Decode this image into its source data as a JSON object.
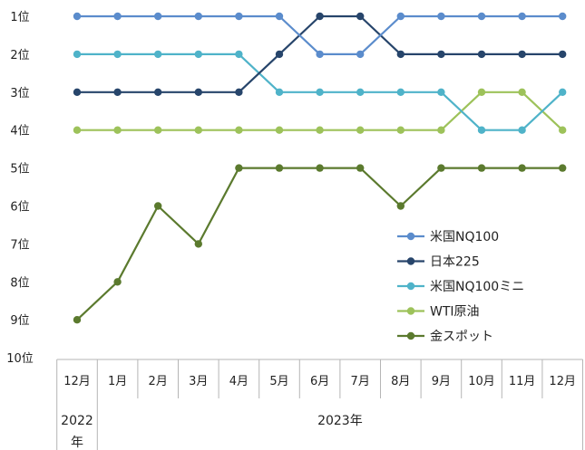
{
  "chart_data": {
    "type": "line",
    "y_tick_labels": [
      "1位",
      "2位",
      "3位",
      "4位",
      "5位",
      "6位",
      "7位",
      "8位",
      "9位",
      "10位"
    ],
    "ylim": [
      1,
      10
    ],
    "y_inverted": true,
    "categories": [
      "12月",
      "1月",
      "2月",
      "3月",
      "4月",
      "5月",
      "6月",
      "7月",
      "8月",
      "9月",
      "10月",
      "11月",
      "12月"
    ],
    "year_groups": [
      {
        "label": "2022年",
        "span": [
          0,
          0
        ]
      },
      {
        "label": "2023年",
        "span": [
          1,
          12
        ]
      }
    ],
    "grid": false,
    "legend_position": "right, lower middle",
    "series": [
      {
        "name": "米国NQ100",
        "color": "#5b8ccc",
        "values": [
          1,
          1,
          1,
          1,
          1,
          1,
          2,
          2,
          1,
          1,
          1,
          1,
          1
        ]
      },
      {
        "name": "日本225",
        "color": "#27456b",
        "values": [
          3,
          3,
          3,
          3,
          3,
          2,
          1,
          1,
          2,
          2,
          2,
          2,
          2
        ]
      },
      {
        "name": "米国NQ100ミニ",
        "color": "#4fb3c9",
        "values": [
          2,
          2,
          2,
          2,
          2,
          3,
          3,
          3,
          3,
          3,
          4,
          4,
          3
        ]
      },
      {
        "name": "WTI原油",
        "color": "#9dc25a",
        "values": [
          4,
          4,
          4,
          4,
          4,
          4,
          4,
          4,
          4,
          4,
          3,
          3,
          4
        ]
      },
      {
        "name": "金スポット",
        "color": "#5b7a2e",
        "values": [
          9,
          8,
          6,
          7,
          5,
          5,
          5,
          5,
          6,
          5,
          5,
          5,
          5
        ]
      }
    ]
  }
}
